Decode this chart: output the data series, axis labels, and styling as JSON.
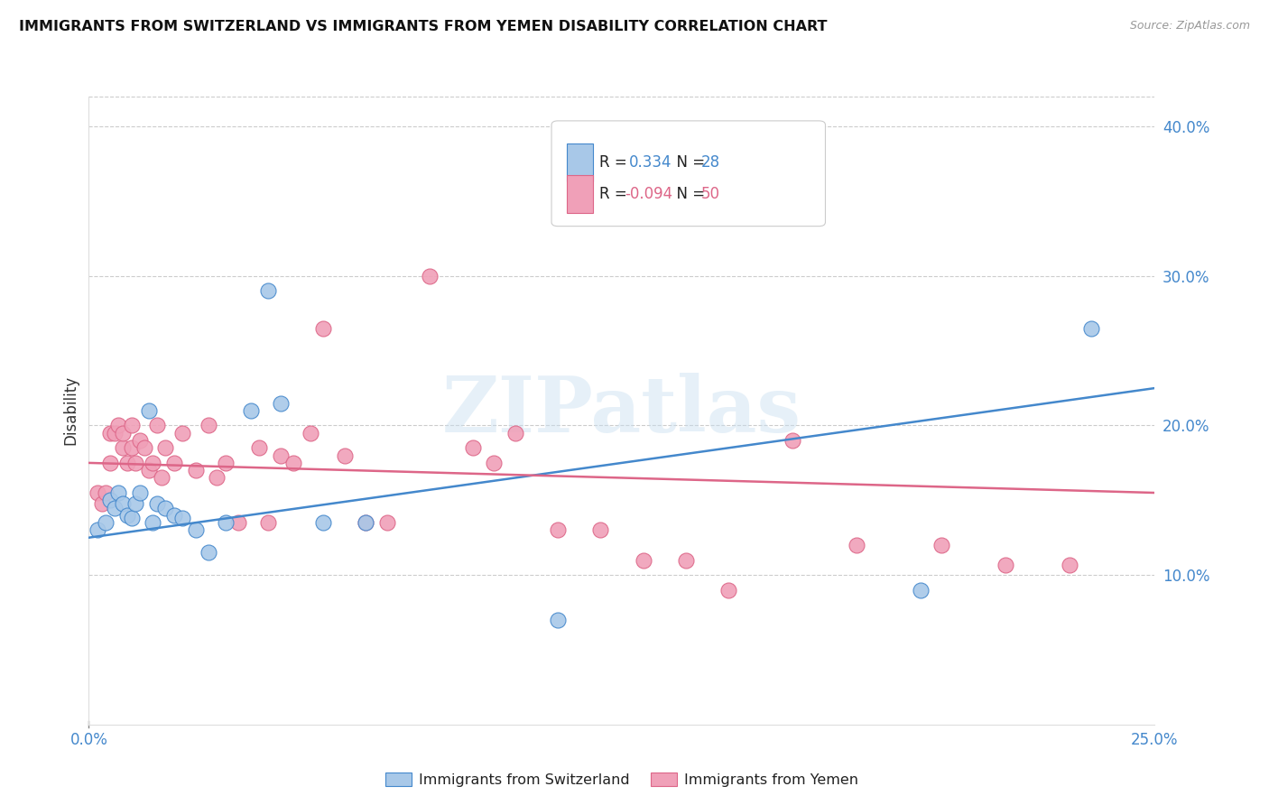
{
  "title": "IMMIGRANTS FROM SWITZERLAND VS IMMIGRANTS FROM YEMEN DISABILITY CORRELATION CHART",
  "source": "Source: ZipAtlas.com",
  "ylabel": "Disability",
  "xlim": [
    0.0,
    0.25
  ],
  "ylim": [
    0.0,
    0.42
  ],
  "yticks": [
    0.1,
    0.2,
    0.3,
    0.4
  ],
  "ytick_labels": [
    "10.0%",
    "20.0%",
    "30.0%",
    "40.0%"
  ],
  "xticks": [
    0.0,
    0.05,
    0.1,
    0.15,
    0.2,
    0.25
  ],
  "xtick_labels": [
    "0.0%",
    "",
    "",
    "",
    "",
    "25.0%"
  ],
  "color_swiss": "#a8c8e8",
  "color_yemen": "#f0a0b8",
  "line_color_swiss": "#4488cc",
  "line_color_yemen": "#dd6688",
  "tick_color": "#4488cc",
  "watermark_text": "ZIPatlas",
  "swiss_x": [
    0.002,
    0.004,
    0.005,
    0.006,
    0.007,
    0.008,
    0.009,
    0.01,
    0.011,
    0.012,
    0.014,
    0.015,
    0.016,
    0.018,
    0.02,
    0.022,
    0.025,
    0.028,
    0.032,
    0.038,
    0.042,
    0.045,
    0.055,
    0.065,
    0.11,
    0.13,
    0.195,
    0.235
  ],
  "swiss_y": [
    0.13,
    0.135,
    0.15,
    0.145,
    0.155,
    0.148,
    0.14,
    0.138,
    0.148,
    0.155,
    0.21,
    0.135,
    0.148,
    0.145,
    0.14,
    0.138,
    0.13,
    0.115,
    0.135,
    0.21,
    0.29,
    0.215,
    0.135,
    0.135,
    0.07,
    0.35,
    0.09,
    0.265
  ],
  "yemen_x": [
    0.002,
    0.003,
    0.004,
    0.005,
    0.005,
    0.006,
    0.007,
    0.008,
    0.008,
    0.009,
    0.01,
    0.01,
    0.011,
    0.012,
    0.013,
    0.014,
    0.015,
    0.016,
    0.017,
    0.018,
    0.02,
    0.022,
    0.025,
    0.028,
    0.03,
    0.032,
    0.035,
    0.04,
    0.042,
    0.045,
    0.048,
    0.052,
    0.055,
    0.06,
    0.065,
    0.07,
    0.08,
    0.09,
    0.095,
    0.1,
    0.11,
    0.12,
    0.13,
    0.14,
    0.15,
    0.165,
    0.18,
    0.2,
    0.215,
    0.23
  ],
  "yemen_y": [
    0.155,
    0.148,
    0.155,
    0.175,
    0.195,
    0.195,
    0.2,
    0.185,
    0.195,
    0.175,
    0.185,
    0.2,
    0.175,
    0.19,
    0.185,
    0.17,
    0.175,
    0.2,
    0.165,
    0.185,
    0.175,
    0.195,
    0.17,
    0.2,
    0.165,
    0.175,
    0.135,
    0.185,
    0.135,
    0.18,
    0.175,
    0.195,
    0.265,
    0.18,
    0.135,
    0.135,
    0.3,
    0.185,
    0.175,
    0.195,
    0.13,
    0.13,
    0.11,
    0.11,
    0.09,
    0.19,
    0.12,
    0.12,
    0.107,
    0.107
  ],
  "swiss_trend_x0": 0.0,
  "swiss_trend_y0": 0.125,
  "swiss_trend_x1": 0.25,
  "swiss_trend_y1": 0.225,
  "yemen_trend_x0": 0.0,
  "yemen_trend_y0": 0.175,
  "yemen_trend_x1": 0.25,
  "yemen_trend_y1": 0.155
}
